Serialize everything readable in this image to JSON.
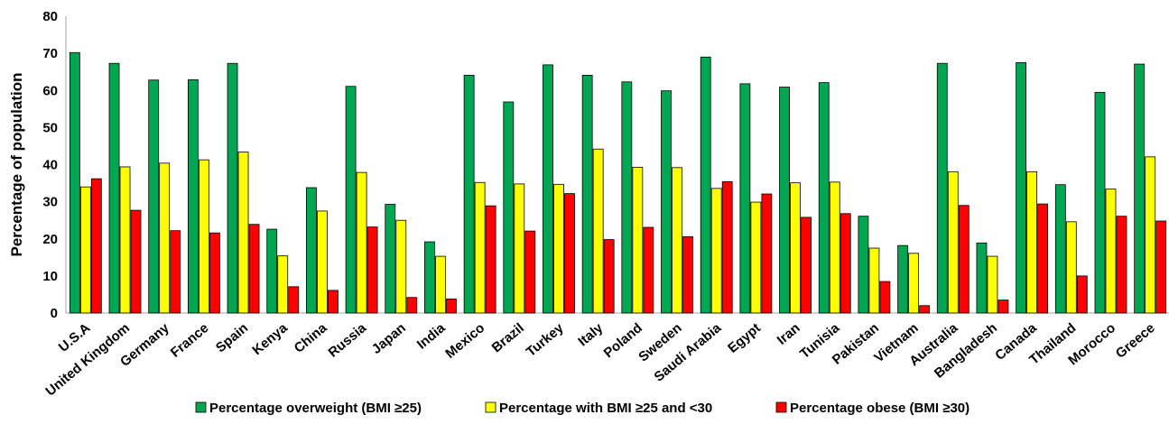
{
  "chart_data": {
    "type": "bar",
    "title": "",
    "xlabel": "",
    "ylabel": "Percentage of population",
    "ylim": [
      0,
      80
    ],
    "yticks": [
      0,
      10,
      20,
      30,
      40,
      50,
      60,
      70,
      80
    ],
    "grid": false,
    "legend_position": "bottom",
    "categories": [
      "U.S.A",
      "United Kingdom",
      "Germany",
      "France",
      "Spain",
      "Kenya",
      "China",
      "Russia",
      "Japan",
      "India",
      "Mexico",
      "Brazil",
      "Turkey",
      "Italy",
      "Poland",
      "Sweden",
      "Saudi Arabia",
      "Egypt",
      "Iran",
      "Tunisia",
      "Pakistan",
      "Vietnam",
      "Australia",
      "Bangladesh",
      "Canada",
      "Thailand",
      "Morocco",
      "Greece"
    ],
    "series": [
      {
        "name": "Percentage overweight (BMI ≥25)",
        "color": "#00a651",
        "values": [
          70.2,
          67.3,
          62.8,
          62.9,
          67.3,
          22.6,
          33.8,
          61.1,
          29.3,
          19.2,
          64.1,
          56.9,
          66.9,
          64.1,
          62.3,
          59.9,
          69.0,
          61.8,
          60.9,
          62.1,
          26.1,
          18.2,
          67.3,
          18.9,
          67.5,
          34.6,
          59.5,
          67.1
        ]
      },
      {
        "name": "Percentage with BMI  ≥25 and <30",
        "color": "#ffff00",
        "values": [
          34.0,
          39.4,
          40.4,
          41.3,
          43.4,
          15.4,
          27.5,
          37.9,
          25.0,
          15.3,
          35.2,
          34.8,
          34.7,
          44.2,
          39.3,
          39.2,
          33.6,
          29.9,
          35.1,
          35.3,
          17.5,
          16.1,
          38.1,
          15.3,
          38.1,
          24.6,
          33.4,
          42.1
        ]
      },
      {
        "name": "Percentage obese (BMI ≥30)",
        "color": "#ff0000",
        "values": [
          36.2,
          27.7,
          22.2,
          21.6,
          23.9,
          7.1,
          6.1,
          23.2,
          4.2,
          3.8,
          28.9,
          22.1,
          32.2,
          19.8,
          23.1,
          20.6,
          35.4,
          32.1,
          25.8,
          26.8,
          8.5,
          2.0,
          29.0,
          3.5,
          29.4,
          10.0,
          26.1,
          24.8
        ]
      }
    ]
  }
}
